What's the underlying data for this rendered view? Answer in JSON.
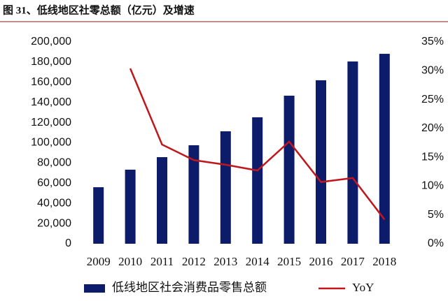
{
  "chart_data": {
    "type": "bar-line",
    "title": "图 31、低线地区社零总额（亿元）及增速",
    "categories": [
      "2009",
      "2010",
      "2011",
      "2012",
      "2013",
      "2014",
      "2015",
      "2016",
      "2017",
      "2018"
    ],
    "series": [
      {
        "name": "低线地区社会消费品零售总额",
        "type": "bar",
        "color": "#0d1b6b",
        "values": [
          56000,
          73400,
          85800,
          97600,
          111400,
          125300,
          146700,
          162000,
          180600,
          188200
        ]
      },
      {
        "name": "YoY",
        "type": "line",
        "axis": "y2",
        "color": "#c0171c",
        "values": [
          null,
          30.4,
          17.2,
          14.5,
          13.7,
          12.7,
          17.7,
          10.7,
          11.4,
          4.2
        ]
      }
    ],
    "ylim": [
      0,
      200000
    ],
    "yticks": [
      0,
      {
        "value": 20000,
        "label": "20,000"
      },
      {
        "value": 40000,
        "label": "40,000"
      },
      {
        "value": 60000,
        "label": "60,000"
      },
      {
        "value": 80000,
        "label": "80,000"
      },
      {
        "value": 100000,
        "label": "100,000"
      },
      {
        "value": 120000,
        "label": "120,000"
      },
      {
        "value": 140000,
        "label": "140,000"
      },
      {
        "value": 160000,
        "label": "160,000"
      },
      {
        "value": 180000,
        "label": "180,000"
      },
      {
        "value": 200000,
        "label": "200,000"
      }
    ],
    "y2lim": [
      0,
      35
    ],
    "y2ticks": [
      {
        "value": 0,
        "label": "0%"
      },
      {
        "value": 5,
        "label": "5%"
      },
      {
        "value": 10,
        "label": "10%"
      },
      {
        "value": 15,
        "label": "15%"
      },
      {
        "value": 20,
        "label": "20%"
      },
      {
        "value": 25,
        "label": "25%"
      },
      {
        "value": 30,
        "label": "30%"
      },
      {
        "value": 35,
        "label": "35%"
      }
    ],
    "legend": "bottom"
  }
}
